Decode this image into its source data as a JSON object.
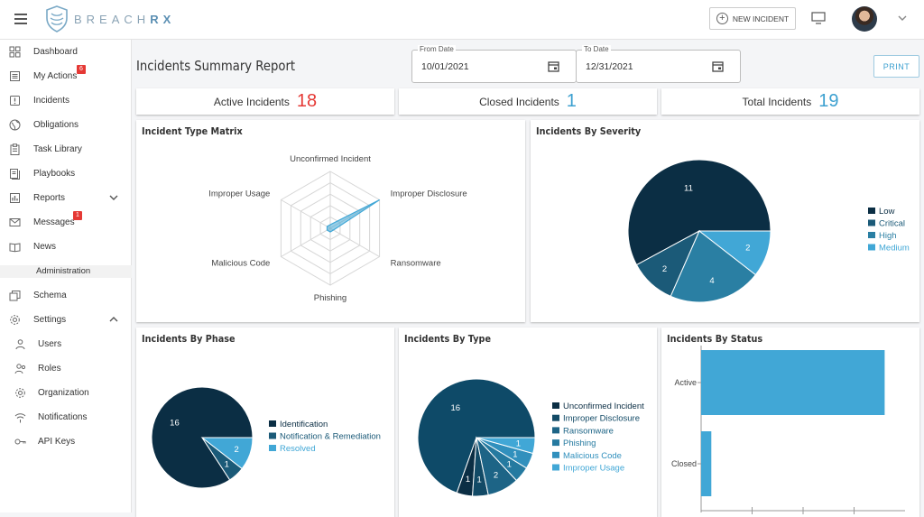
{
  "header": {
    "logo_prefix": "BREACH",
    "logo_suffix": "RX",
    "new_incident_label": "NEW INCIDENT"
  },
  "sidebar": {
    "items": [
      {
        "label": "Dashboard",
        "icon": "dashboard-icon"
      },
      {
        "label": "My Actions",
        "icon": "actions-icon",
        "badge": "6"
      },
      {
        "label": "Incidents",
        "icon": "incidents-icon"
      },
      {
        "label": "Obligations",
        "icon": "globe-icon"
      },
      {
        "label": "Task Library",
        "icon": "clipboard-icon"
      },
      {
        "label": "Playbooks",
        "icon": "book-icon"
      },
      {
        "label": "Reports",
        "icon": "chart-icon"
      },
      {
        "label": "Messages",
        "icon": "mail-icon",
        "badge": "1"
      },
      {
        "label": "News",
        "icon": "news-icon"
      },
      {
        "label": "Administration"
      },
      {
        "label": "Schema",
        "icon": "schema-icon"
      },
      {
        "label": "Settings",
        "icon": "gear-icon"
      },
      {
        "label": "Users",
        "icon": "user-icon"
      },
      {
        "label": "Roles",
        "icon": "roles-icon"
      },
      {
        "label": "Organization",
        "icon": "organization-icon"
      },
      {
        "label": "Notifications",
        "icon": "wifi-icon"
      },
      {
        "label": "API Keys",
        "icon": "key-icon"
      }
    ]
  },
  "page_title": "Incidents Summary Report",
  "filters": {
    "from_label": "From Date",
    "from_value": "10/01/2021",
    "to_label": "To Date",
    "to_value": "12/31/2021",
    "print_label": "PRINT"
  },
  "stats": {
    "active_label": "Active Incidents",
    "active_value": "18",
    "closed_label": "Closed Incidents",
    "closed_value": "1",
    "total_label": "Total Incidents",
    "total_value": "19"
  },
  "colors": {
    "active_red": "#e53935",
    "accent_blue": "#3ca0d0",
    "dark_navy": "#0b2e44",
    "mid_navy": "#1b5a78",
    "mid_blue": "#2a7fa3",
    "light_blue": "#41a7d6"
  },
  "chart_data": [
    {
      "type": "radar",
      "title": "Incident Type Matrix",
      "axes": [
        "Unconfirmed Incident",
        "Improper Disclosure",
        "Ransomware",
        "Phishing",
        "Malicious Code",
        "Improper Usage"
      ],
      "values": [
        0,
        5,
        0,
        0,
        0,
        0
      ],
      "rmax": 5
    },
    {
      "type": "pie",
      "title": "Incidents By Severity",
      "slices": [
        {
          "label": "Low",
          "value": 11,
          "color": "#0b2e44"
        },
        {
          "label": "Critical",
          "value": 2,
          "color": "#1b5a78"
        },
        {
          "label": "High",
          "value": 4,
          "color": "#2a7fa3"
        },
        {
          "label": "Medium",
          "value": 2,
          "color": "#41a7d6"
        }
      ]
    },
    {
      "type": "pie",
      "title": "Incidents By Phase",
      "slices": [
        {
          "label": "Identification",
          "value": 16,
          "color": "#0b2e44"
        },
        {
          "label": "Notification & Remediation",
          "value": 1,
          "color": "#1b5a78"
        },
        {
          "label": "Resolved",
          "value": 2,
          "color": "#41a7d6"
        }
      ]
    },
    {
      "type": "pie",
      "title": "Incidents By Type",
      "slices": [
        {
          "label": "",
          "value": 16,
          "color": "#0e4a68"
        },
        {
          "label": "Unconfirmed Incident",
          "value": 1,
          "color": "#0b2e44"
        },
        {
          "label": "Improper Disclosure",
          "value": 1,
          "color": "#124a66"
        },
        {
          "label": "Ransomware",
          "value": 2,
          "color": "#1d6486"
        },
        {
          "label": "Phishing",
          "value": 1,
          "color": "#257aa0"
        },
        {
          "label": "Malicious Code",
          "value": 1,
          "color": "#3190bd"
        },
        {
          "label": "Improper Usage",
          "value": 1,
          "color": "#41a7d6"
        }
      ]
    },
    {
      "type": "bar",
      "orientation": "horizontal",
      "title": "Incidents By Status",
      "categories": [
        "Active",
        "Closed"
      ],
      "values": [
        18,
        1
      ],
      "xlim": [
        0,
        20
      ]
    }
  ]
}
